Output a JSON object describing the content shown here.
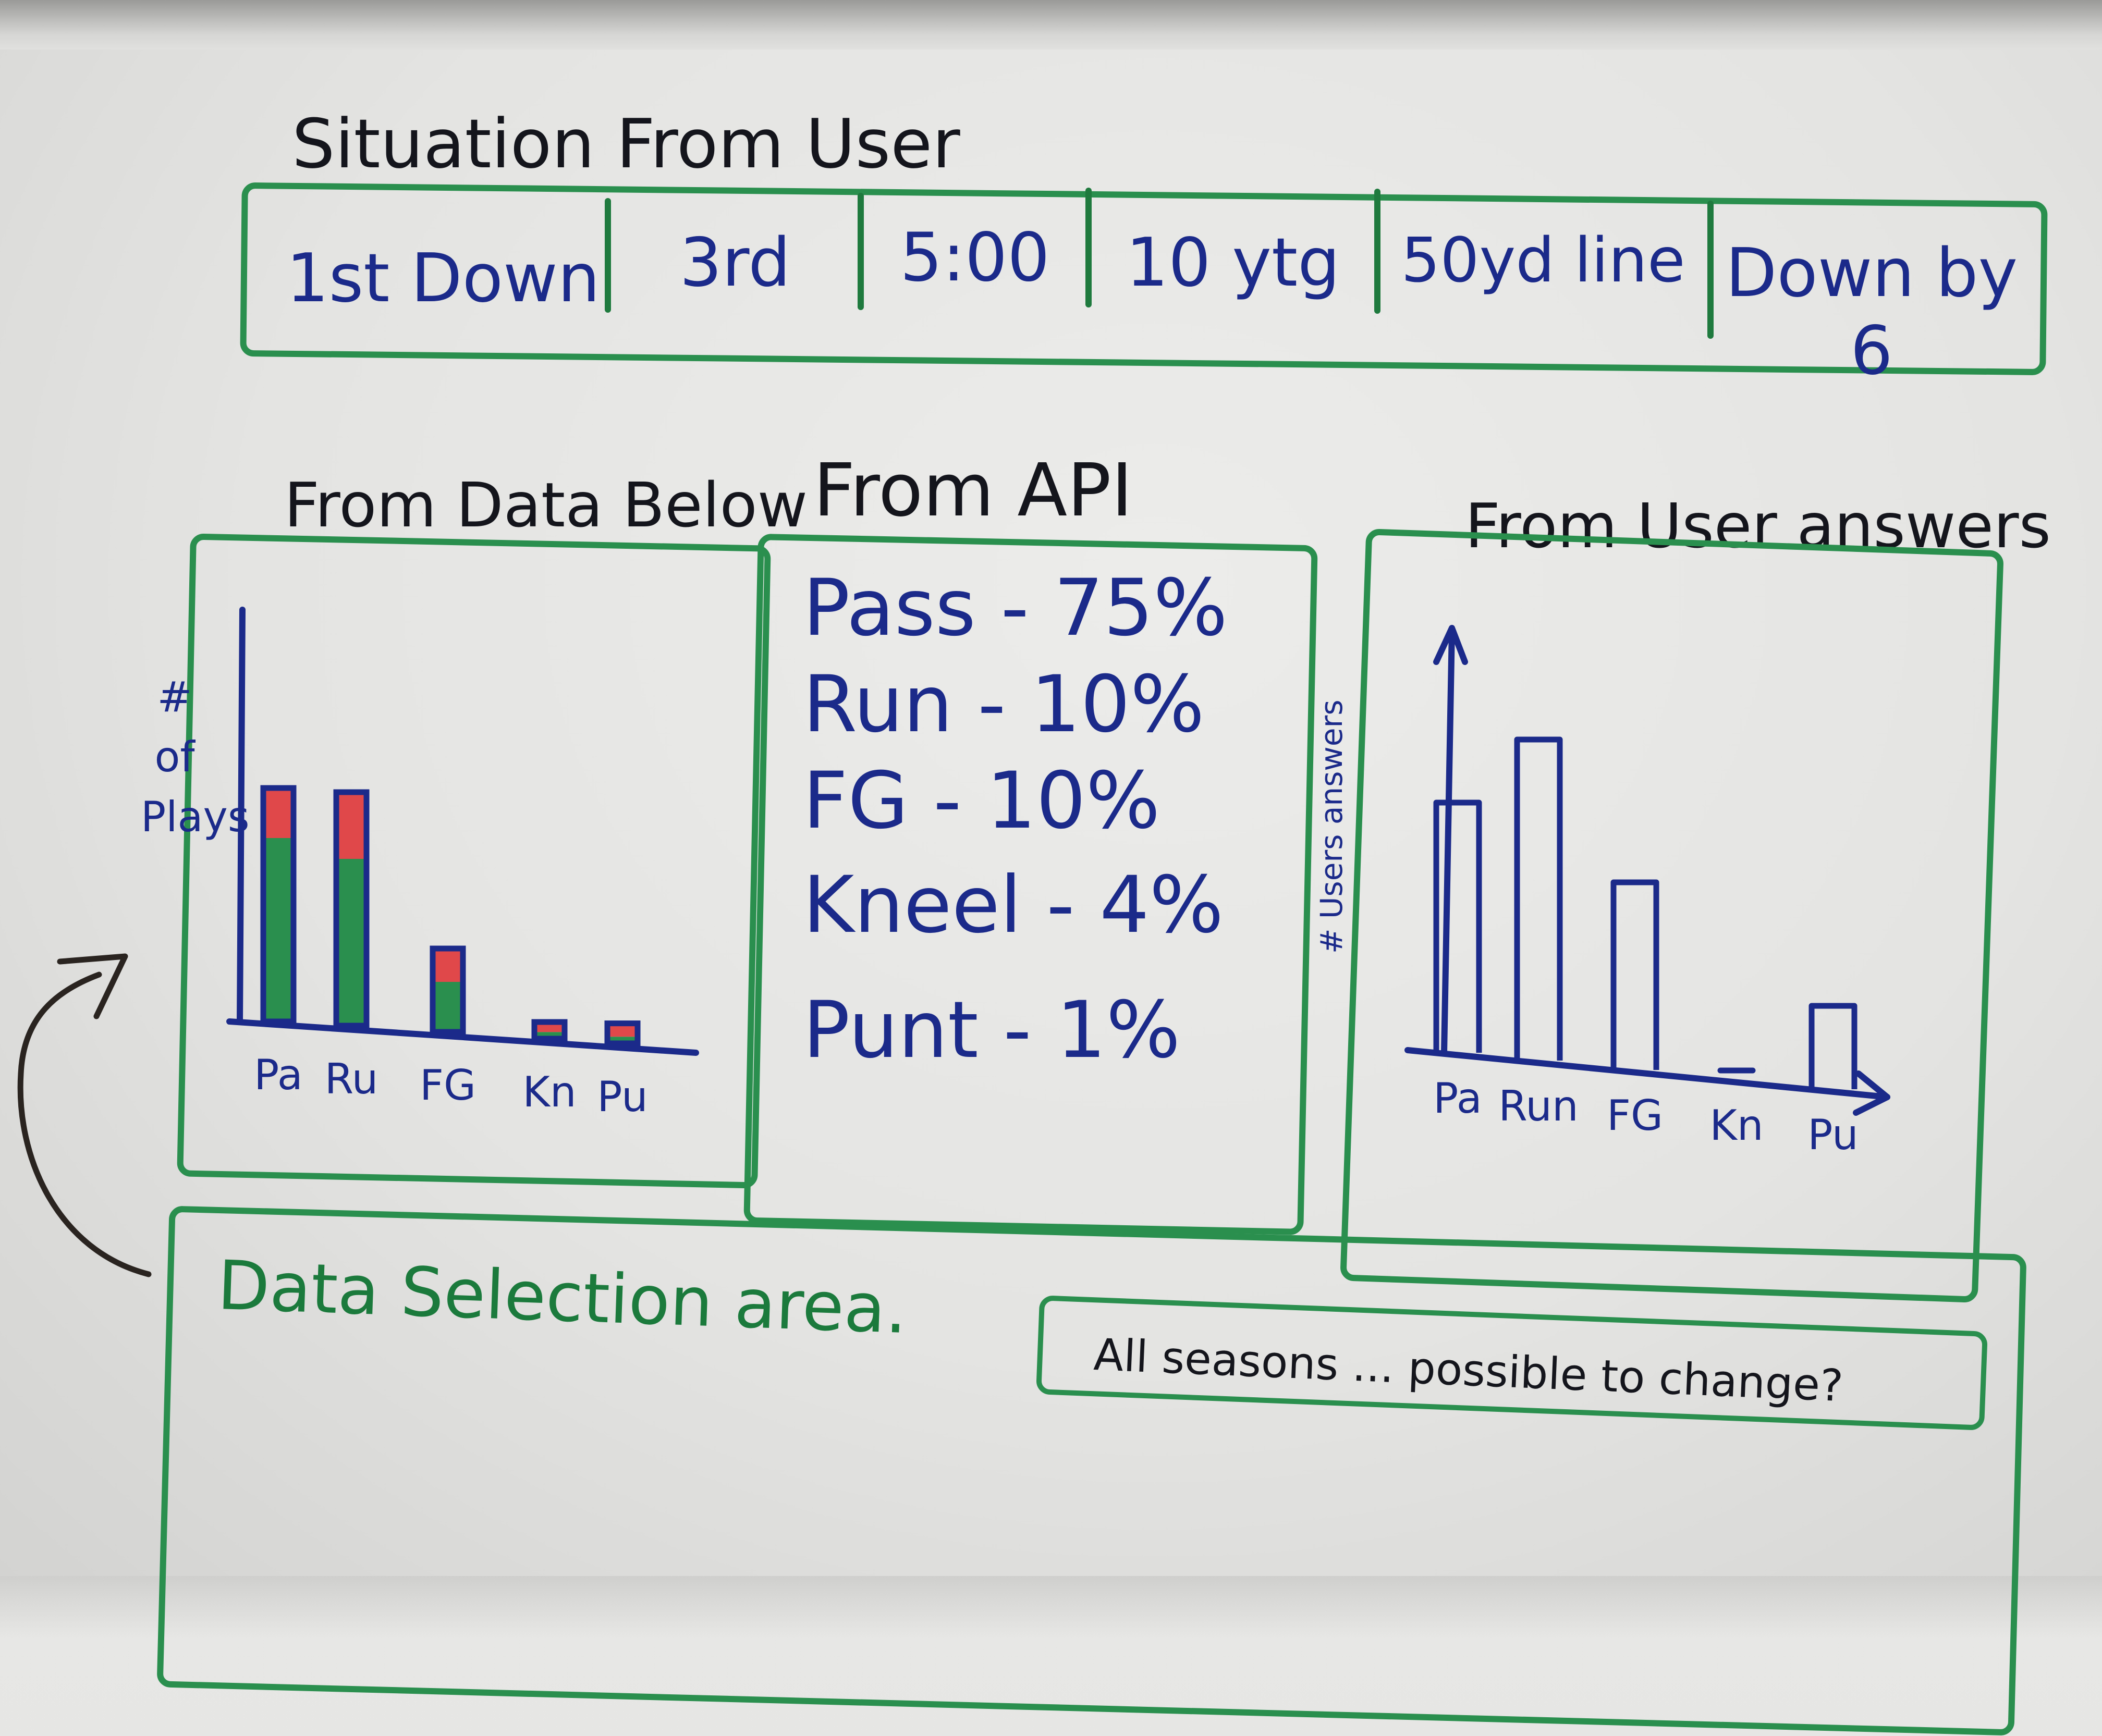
{
  "situation": {
    "title": "Situation From User",
    "cells": [
      "1st Down",
      "3rd",
      "5:00",
      "10 ytg",
      "50yd line",
      "Down by 6"
    ]
  },
  "panels": {
    "left_title": "From Data Below",
    "middle_title": "From API",
    "right_title": "From User answers"
  },
  "api": {
    "rows": [
      {
        "label": "Pass",
        "value": "75%"
      },
      {
        "label": "Run",
        "value": "10%"
      },
      {
        "label": "FG",
        "value": "10%"
      },
      {
        "label": "Kneel",
        "value": "4%"
      },
      {
        "label": "Punt",
        "value": "1%"
      }
    ]
  },
  "bottom": {
    "title": "Data Selection area.",
    "note": "All seasons ... possible to change?"
  },
  "colors": {
    "marker_green": "#2a8f4e",
    "marker_blue": "#1b2a8a",
    "marker_red": "#e0484a",
    "marker_black": "#14151c"
  },
  "chart_data": [
    {
      "type": "bar",
      "title": "From Data Below",
      "ylabel": "# of Plays",
      "categories": [
        "Pa",
        "Ru",
        "FG",
        "Kn",
        "Pu"
      ],
      "series": [
        {
          "values": [
            55,
            50,
            15,
            2,
            2
          ]
        },
        {
          "values": [
            15,
            20,
            10,
            3,
            4
          ]
        }
      ],
      "ylim": [
        0,
        100
      ],
      "stacked": true
    },
    {
      "type": "bar",
      "title": "From User answers",
      "ylabel": "# Users answers",
      "categories": [
        "Pa",
        "Run",
        "FG",
        "Kn",
        "Pu"
      ],
      "values": [
        60,
        77,
        45,
        2,
        20
      ],
      "ylim": [
        0,
        100
      ]
    }
  ]
}
